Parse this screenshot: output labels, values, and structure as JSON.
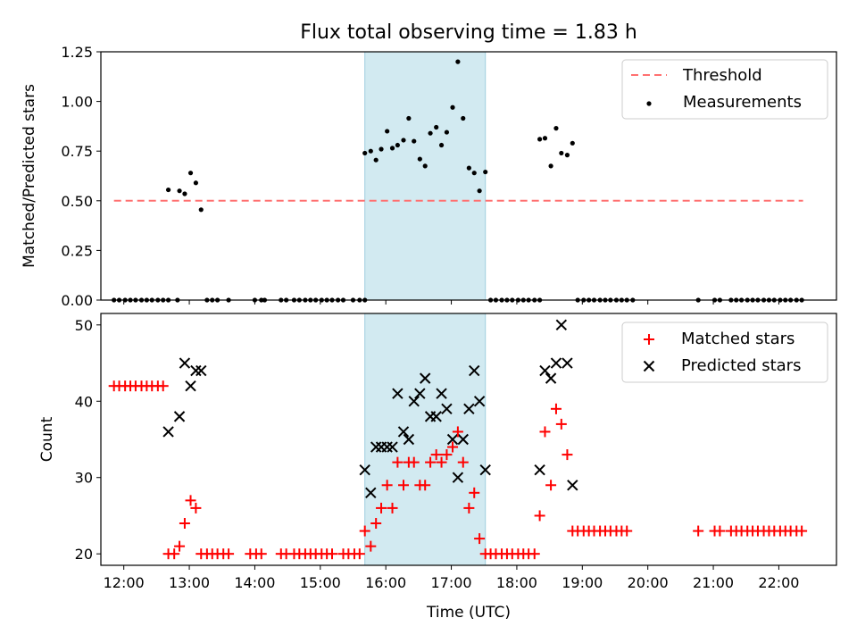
{
  "chart_data": [
    {
      "type": "scatter",
      "title": "Flux total observing time = 1.83 h",
      "xlabel": "",
      "ylabel": "Matched/Predicted stars",
      "xlim": [
        11.65,
        22.88
      ],
      "ylim": [
        0,
        1.25
      ],
      "yticks": [
        0,
        0.25,
        0.5,
        0.75,
        1.0,
        1.25
      ],
      "ytick_labels": [
        "0.00",
        "0.25",
        "0.50",
        "0.75",
        "1.00",
        "1.25"
      ],
      "shaded_span": {
        "x": [
          15.68,
          17.52
        ],
        "color": "#add8e6"
      },
      "threshold": {
        "name": "Threshold",
        "value": 0.5,
        "x": [
          11.85,
          22.37
        ],
        "color": "#ff7070"
      },
      "legend_position": "upper right",
      "series": [
        {
          "name": "Measurements",
          "color": "#000000",
          "points": [
            [
              11.85,
              0
            ],
            [
              11.93,
              0
            ],
            [
              12.02,
              0
            ],
            [
              12.1,
              0
            ],
            [
              12.18,
              0
            ],
            [
              12.27,
              0
            ],
            [
              12.35,
              0
            ],
            [
              12.43,
              0
            ],
            [
              12.52,
              0
            ],
            [
              12.6,
              0
            ],
            [
              12.68,
              0
            ],
            [
              12.68,
              0.555
            ],
            [
              12.82,
              0
            ],
            [
              12.85,
              0.55
            ],
            [
              12.93,
              0.535
            ],
            [
              13.02,
              0.64
            ],
            [
              13.1,
              0.59
            ],
            [
              13.18,
              0.455
            ],
            [
              13.27,
              0
            ],
            [
              13.35,
              0
            ],
            [
              13.43,
              0
            ],
            [
              13.6,
              0
            ],
            [
              14.0,
              0
            ],
            [
              14.1,
              0
            ],
            [
              14.15,
              0
            ],
            [
              14.4,
              0
            ],
            [
              14.48,
              0
            ],
            [
              14.6,
              0
            ],
            [
              14.68,
              0
            ],
            [
              14.77,
              0
            ],
            [
              14.85,
              0
            ],
            [
              14.93,
              0
            ],
            [
              15.02,
              0
            ],
            [
              15.1,
              0
            ],
            [
              15.18,
              0
            ],
            [
              15.27,
              0
            ],
            [
              15.35,
              0
            ],
            [
              15.5,
              0
            ],
            [
              15.6,
              0
            ],
            [
              15.68,
              0
            ],
            [
              15.68,
              0.74
            ],
            [
              15.77,
              0.75
            ],
            [
              15.85,
              0.705
            ],
            [
              15.93,
              0.76
            ],
            [
              16.02,
              0.85
            ],
            [
              16.1,
              0.765
            ],
            [
              16.18,
              0.78
            ],
            [
              16.27,
              0.805
            ],
            [
              16.35,
              0.915
            ],
            [
              16.43,
              0.8
            ],
            [
              16.52,
              0.71
            ],
            [
              16.6,
              0.675
            ],
            [
              16.68,
              0.84
            ],
            [
              16.77,
              0.87
            ],
            [
              16.85,
              0.78
            ],
            [
              16.93,
              0.845
            ],
            [
              17.02,
              0.97
            ],
            [
              17.1,
              1.2
            ],
            [
              17.18,
              0.915
            ],
            [
              17.27,
              0.665
            ],
            [
              17.35,
              0.64
            ],
            [
              17.43,
              0.55
            ],
            [
              17.52,
              0.645
            ],
            [
              17.6,
              0
            ],
            [
              17.68,
              0
            ],
            [
              17.77,
              0
            ],
            [
              17.85,
              0
            ],
            [
              17.93,
              0
            ],
            [
              18.02,
              0
            ],
            [
              18.1,
              0
            ],
            [
              18.18,
              0
            ],
            [
              18.27,
              0
            ],
            [
              18.35,
              0
            ],
            [
              18.35,
              0.81
            ],
            [
              18.43,
              0.815
            ],
            [
              18.52,
              0.675
            ],
            [
              18.6,
              0.865
            ],
            [
              18.68,
              0.74
            ],
            [
              18.77,
              0.73
            ],
            [
              18.85,
              0.79
            ],
            [
              18.93,
              0
            ],
            [
              19.02,
              0
            ],
            [
              19.1,
              0
            ],
            [
              19.18,
              0
            ],
            [
              19.27,
              0
            ],
            [
              19.35,
              0
            ],
            [
              19.43,
              0
            ],
            [
              19.52,
              0
            ],
            [
              19.6,
              0
            ],
            [
              19.68,
              0
            ],
            [
              19.77,
              0
            ],
            [
              20.77,
              0
            ],
            [
              21.02,
              0
            ],
            [
              21.1,
              0
            ],
            [
              21.27,
              0
            ],
            [
              21.35,
              0
            ],
            [
              21.43,
              0
            ],
            [
              21.52,
              0
            ],
            [
              21.6,
              0
            ],
            [
              21.68,
              0
            ],
            [
              21.77,
              0
            ],
            [
              21.85,
              0
            ],
            [
              21.93,
              0
            ],
            [
              22.02,
              0
            ],
            [
              22.1,
              0
            ],
            [
              22.18,
              0
            ],
            [
              22.27,
              0
            ],
            [
              22.35,
              0
            ]
          ]
        }
      ]
    },
    {
      "type": "scatter",
      "title": "",
      "xlabel": "Time (UTC)",
      "ylabel": "Count",
      "xlim": [
        11.65,
        22.88
      ],
      "ylim": [
        18.5,
        51.5
      ],
      "yticks": [
        20,
        30,
        40,
        50
      ],
      "ytick_labels": [
        "20",
        "30",
        "40",
        "50"
      ],
      "xticks": [
        12,
        13,
        14,
        15,
        16,
        17,
        18,
        19,
        20,
        21,
        22
      ],
      "xtick_labels": [
        "12:00",
        "13:00",
        "14:00",
        "15:00",
        "16:00",
        "17:00",
        "18:00",
        "19:00",
        "20:00",
        "21:00",
        "22:00"
      ],
      "shaded_span": {
        "x": [
          15.68,
          17.52
        ],
        "color": "#add8e6"
      },
      "legend_position": "upper right",
      "series": [
        {
          "name": "Matched stars",
          "color": "#ff0000",
          "points": [
            [
              11.85,
              42
            ],
            [
              11.93,
              42
            ],
            [
              12.02,
              42
            ],
            [
              12.1,
              42
            ],
            [
              12.18,
              42
            ],
            [
              12.27,
              42
            ],
            [
              12.35,
              42
            ],
            [
              12.43,
              42
            ],
            [
              12.52,
              42
            ],
            [
              12.6,
              42
            ],
            [
              12.68,
              20
            ],
            [
              12.77,
              20
            ],
            [
              12.85,
              21
            ],
            [
              12.93,
              24
            ],
            [
              13.02,
              27
            ],
            [
              13.1,
              26
            ],
            [
              13.18,
              20
            ],
            [
              13.27,
              20
            ],
            [
              13.35,
              20
            ],
            [
              13.43,
              20
            ],
            [
              13.52,
              20
            ],
            [
              13.6,
              20
            ],
            [
              13.93,
              20
            ],
            [
              14.02,
              20
            ],
            [
              14.1,
              20
            ],
            [
              14.4,
              20
            ],
            [
              14.48,
              20
            ],
            [
              14.6,
              20
            ],
            [
              14.68,
              20
            ],
            [
              14.77,
              20
            ],
            [
              14.85,
              20
            ],
            [
              14.93,
              20
            ],
            [
              15.02,
              20
            ],
            [
              15.1,
              20
            ],
            [
              15.18,
              20
            ],
            [
              15.35,
              20
            ],
            [
              15.43,
              20
            ],
            [
              15.52,
              20
            ],
            [
              15.6,
              20
            ],
            [
              15.68,
              23
            ],
            [
              15.77,
              21
            ],
            [
              15.85,
              24
            ],
            [
              15.93,
              26
            ],
            [
              16.02,
              29
            ],
            [
              16.1,
              26
            ],
            [
              16.18,
              32
            ],
            [
              16.27,
              29
            ],
            [
              16.35,
              32
            ],
            [
              16.43,
              32
            ],
            [
              16.52,
              29
            ],
            [
              16.6,
              29
            ],
            [
              16.68,
              32
            ],
            [
              16.77,
              33
            ],
            [
              16.85,
              32
            ],
            [
              16.93,
              33
            ],
            [
              17.02,
              34
            ],
            [
              17.1,
              36
            ],
            [
              17.18,
              32
            ],
            [
              17.27,
              26
            ],
            [
              17.35,
              28
            ],
            [
              17.43,
              22
            ],
            [
              17.52,
              20
            ],
            [
              17.6,
              20
            ],
            [
              17.68,
              20
            ],
            [
              17.77,
              20
            ],
            [
              17.85,
              20
            ],
            [
              17.93,
              20
            ],
            [
              18.02,
              20
            ],
            [
              18.1,
              20
            ],
            [
              18.18,
              20
            ],
            [
              18.27,
              20
            ],
            [
              18.35,
              25
            ],
            [
              18.43,
              36
            ],
            [
              18.52,
              29
            ],
            [
              18.6,
              39
            ],
            [
              18.68,
              37
            ],
            [
              18.77,
              33
            ],
            [
              18.85,
              23
            ],
            [
              18.93,
              23
            ],
            [
              19.02,
              23
            ],
            [
              19.1,
              23
            ],
            [
              19.18,
              23
            ],
            [
              19.27,
              23
            ],
            [
              19.35,
              23
            ],
            [
              19.43,
              23
            ],
            [
              19.52,
              23
            ],
            [
              19.6,
              23
            ],
            [
              19.68,
              23
            ],
            [
              20.77,
              23
            ],
            [
              21.02,
              23
            ],
            [
              21.1,
              23
            ],
            [
              21.27,
              23
            ],
            [
              21.35,
              23
            ],
            [
              21.43,
              23
            ],
            [
              21.52,
              23
            ],
            [
              21.6,
              23
            ],
            [
              21.68,
              23
            ],
            [
              21.77,
              23
            ],
            [
              21.85,
              23
            ],
            [
              21.93,
              23
            ],
            [
              22.02,
              23
            ],
            [
              22.1,
              23
            ],
            [
              22.18,
              23
            ],
            [
              22.27,
              23
            ],
            [
              22.35,
              23
            ]
          ]
        },
        {
          "name": "Predicted stars",
          "color": "#000000",
          "points": [
            [
              12.68,
              36
            ],
            [
              12.85,
              38
            ],
            [
              12.93,
              45
            ],
            [
              13.02,
              42
            ],
            [
              13.1,
              44
            ],
            [
              13.18,
              44
            ],
            [
              15.68,
              31
            ],
            [
              15.77,
              28
            ],
            [
              15.85,
              34
            ],
            [
              15.93,
              34
            ],
            [
              16.02,
              34
            ],
            [
              16.1,
              34
            ],
            [
              16.18,
              41
            ],
            [
              16.27,
              36
            ],
            [
              16.35,
              35
            ],
            [
              16.43,
              40
            ],
            [
              16.52,
              41
            ],
            [
              16.6,
              43
            ],
            [
              16.68,
              38
            ],
            [
              16.77,
              38
            ],
            [
              16.85,
              41
            ],
            [
              16.93,
              39
            ],
            [
              17.02,
              35
            ],
            [
              17.1,
              30
            ],
            [
              17.18,
              35
            ],
            [
              17.27,
              39
            ],
            [
              17.35,
              44
            ],
            [
              17.43,
              40
            ],
            [
              17.52,
              31
            ],
            [
              18.35,
              31
            ],
            [
              18.43,
              44
            ],
            [
              18.52,
              43
            ],
            [
              18.6,
              45
            ],
            [
              18.68,
              50
            ],
            [
              18.77,
              45
            ],
            [
              18.85,
              29
            ]
          ]
        }
      ]
    }
  ]
}
